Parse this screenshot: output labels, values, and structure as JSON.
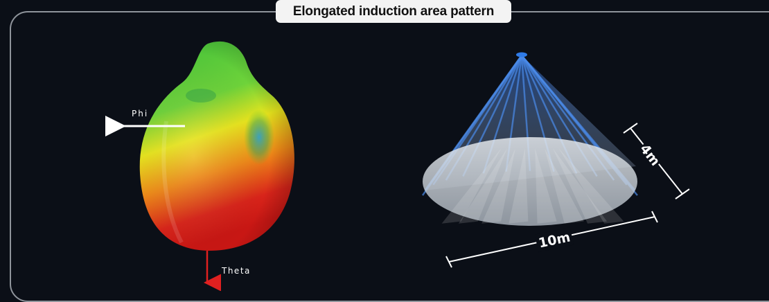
{
  "title": "Elongated induction area pattern",
  "radiation_pattern": {
    "phi_label": "Phi",
    "theta_label": "Theta",
    "colors": {
      "top": "#4cc83c",
      "mid": "#e8e61c",
      "bottom": "#d61a14"
    }
  },
  "coverage_cone": {
    "width_label": "10m",
    "depth_label": "4m",
    "colors": {
      "beam": "#3a7ad8",
      "floor": "#d8dde2"
    }
  },
  "colors": {
    "background": "#0b0f17",
    "frame": "#8f949b",
    "title_bg": "#f3f3f3"
  }
}
